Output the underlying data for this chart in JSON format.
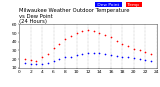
{
  "title": "Milwaukee Weather Outdoor Temperature",
  "subtitle1": "vs Dew Point",
  "subtitle2": "(24 Hours)",
  "temp_color": "#ff0000",
  "dew_color": "#0000ff",
  "background_color": "#ffffff",
  "grid_color": "#888888",
  "ylim": [
    10,
    60
  ],
  "xlim": [
    0,
    24
  ],
  "temp_label": "Temp",
  "dew_label": "Dew Point",
  "x_ticks": [
    0,
    2,
    4,
    6,
    8,
    10,
    12,
    14,
    16,
    18,
    20,
    22,
    24
  ],
  "x_tick_labels": [
    "0",
    "2",
    "4",
    "6",
    "8",
    "10",
    "12",
    "14",
    "16",
    "18",
    "20",
    "22",
    "24"
  ],
  "y_ticks": [
    10,
    20,
    30,
    40,
    50,
    60
  ],
  "temp_x": [
    1,
    2,
    3,
    4,
    5,
    6,
    7,
    8,
    9,
    10,
    11,
    12,
    13,
    14,
    15,
    16,
    17,
    18,
    19,
    20,
    21,
    22,
    23
  ],
  "temp_y": [
    20,
    19,
    18,
    22,
    26,
    33,
    38,
    43,
    47,
    50,
    52,
    53,
    52,
    50,
    48,
    45,
    41,
    38,
    35,
    32,
    30,
    28,
    26
  ],
  "dew_x": [
    1,
    2,
    3,
    4,
    5,
    6,
    7,
    8,
    9,
    10,
    11,
    12,
    13,
    14,
    15,
    16,
    17,
    18,
    19,
    20,
    21,
    22,
    23
  ],
  "dew_y": [
    16,
    15,
    14,
    15,
    16,
    18,
    20,
    22,
    23,
    25,
    26,
    27,
    27,
    27,
    26,
    25,
    24,
    23,
    22,
    21,
    20,
    19,
    18
  ],
  "marker_size": 1.5,
  "title_fontsize": 3.8,
  "tick_fontsize": 3.2,
  "legend_fontsize": 3.2
}
